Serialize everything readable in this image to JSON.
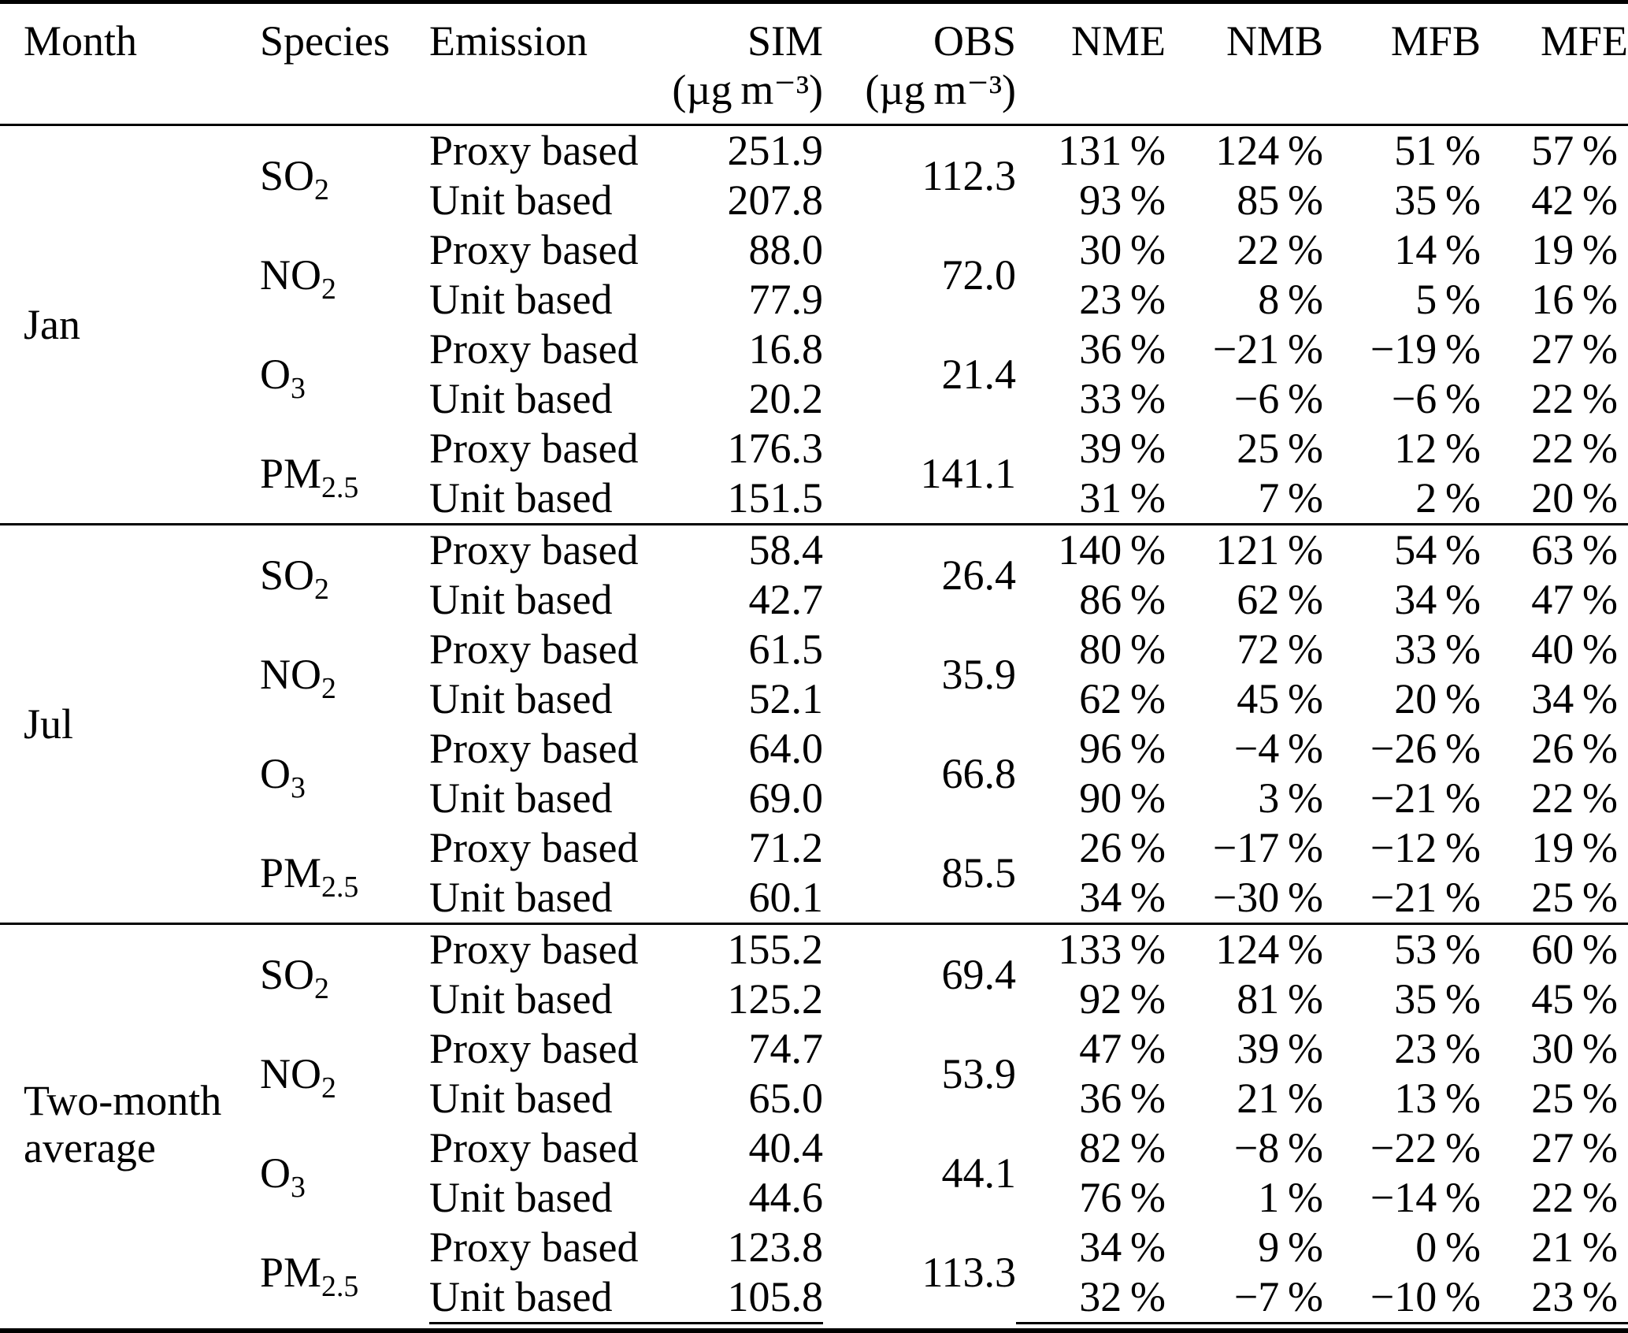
{
  "table": {
    "columns": [
      {
        "label": "Month"
      },
      {
        "label": "Species"
      },
      {
        "label": "Emission"
      },
      {
        "label": "SIM",
        "unit": "(µg m⁻³)"
      },
      {
        "label": "OBS",
        "unit": "(µg m⁻³)"
      },
      {
        "label": "NME"
      },
      {
        "label": "NMB"
      },
      {
        "label": "MFB"
      },
      {
        "label": "MFE"
      }
    ],
    "groups": [
      {
        "month": "Jan",
        "species": [
          {
            "base": "SO",
            "sub": "2",
            "obs": "112.3",
            "rows": [
              {
                "emission": "Proxy based",
                "sim": "251.9",
                "nme": "131 %",
                "nmb": "124 %",
                "mfb": "51 %",
                "mfe": "57 %"
              },
              {
                "emission": "Unit based",
                "sim": "207.8",
                "nme": "93 %",
                "nmb": "85 %",
                "mfb": "35 %",
                "mfe": "42 %"
              }
            ]
          },
          {
            "base": "NO",
            "sub": "2",
            "obs": "72.0",
            "rows": [
              {
                "emission": "Proxy based",
                "sim": "88.0",
                "nme": "30 %",
                "nmb": "22 %",
                "mfb": "14 %",
                "mfe": "19 %"
              },
              {
                "emission": "Unit based",
                "sim": "77.9",
                "nme": "23 %",
                "nmb": "8 %",
                "mfb": "5 %",
                "mfe": "16 %"
              }
            ]
          },
          {
            "base": "O",
            "sub": "3",
            "obs": "21.4",
            "rows": [
              {
                "emission": "Proxy based",
                "sim": "16.8",
                "nme": "36 %",
                "nmb": "−21 %",
                "mfb": "−19 %",
                "mfe": "27 %"
              },
              {
                "emission": "Unit based",
                "sim": "20.2",
                "nme": "33 %",
                "nmb": "−6 %",
                "mfb": "−6 %",
                "mfe": "22 %"
              }
            ]
          },
          {
            "base": "PM",
            "sub": "2.5",
            "obs": "141.1",
            "rows": [
              {
                "emission": "Proxy based",
                "sim": "176.3",
                "nme": "39 %",
                "nmb": "25 %",
                "mfb": "12 %",
                "mfe": "22 %"
              },
              {
                "emission": "Unit based",
                "sim": "151.5",
                "nme": "31 %",
                "nmb": "7 %",
                "mfb": "2 %",
                "mfe": "20 %"
              }
            ]
          }
        ]
      },
      {
        "month": "Jul",
        "species": [
          {
            "base": "SO",
            "sub": "2",
            "obs": "26.4",
            "rows": [
              {
                "emission": "Proxy based",
                "sim": "58.4",
                "nme": "140 %",
                "nmb": "121 %",
                "mfb": "54 %",
                "mfe": "63 %"
              },
              {
                "emission": "Unit based",
                "sim": "42.7",
                "nme": "86 %",
                "nmb": "62 %",
                "mfb": "34 %",
                "mfe": "47 %"
              }
            ]
          },
          {
            "base": "NO",
            "sub": "2",
            "obs": "35.9",
            "rows": [
              {
                "emission": "Proxy based",
                "sim": "61.5",
                "nme": "80 %",
                "nmb": "72 %",
                "mfb": "33 %",
                "mfe": "40 %"
              },
              {
                "emission": "Unit based",
                "sim": "52.1",
                "nme": "62 %",
                "nmb": "45 %",
                "mfb": "20 %",
                "mfe": "34 %"
              }
            ]
          },
          {
            "base": "O",
            "sub": "3",
            "obs": "66.8",
            "rows": [
              {
                "emission": "Proxy based",
                "sim": "64.0",
                "nme": "96 %",
                "nmb": "−4 %",
                "mfb": "−26 %",
                "mfe": "26 %"
              },
              {
                "emission": "Unit based",
                "sim": "69.0",
                "nme": "90 %",
                "nmb": "3 %",
                "mfb": "−21 %",
                "mfe": "22 %"
              }
            ]
          },
          {
            "base": "PM",
            "sub": "2.5",
            "obs": "85.5",
            "rows": [
              {
                "emission": "Proxy based",
                "sim": "71.2",
                "nme": "26 %",
                "nmb": "−17 %",
                "mfb": "−12 %",
                "mfe": "19 %"
              },
              {
                "emission": "Unit based",
                "sim": "60.1",
                "nme": "34 %",
                "nmb": "−30 %",
                "mfb": "−21 %",
                "mfe": "25 %"
              }
            ]
          }
        ]
      },
      {
        "month": "Two-month average",
        "species": [
          {
            "base": "SO",
            "sub": "2",
            "obs": "69.4",
            "rows": [
              {
                "emission": "Proxy based",
                "sim": "155.2",
                "nme": "133 %",
                "nmb": "124 %",
                "mfb": "53 %",
                "mfe": "60 %"
              },
              {
                "emission": "Unit based",
                "sim": "125.2",
                "nme": "92 %",
                "nmb": "81 %",
                "mfb": "35 %",
                "mfe": "45 %"
              }
            ]
          },
          {
            "base": "NO",
            "sub": "2",
            "obs": "53.9",
            "rows": [
              {
                "emission": "Proxy based",
                "sim": "74.7",
                "nme": "47 %",
                "nmb": "39 %",
                "mfb": "23 %",
                "mfe": "30 %"
              },
              {
                "emission": "Unit based",
                "sim": "65.0",
                "nme": "36 %",
                "nmb": "21 %",
                "mfb": "13 %",
                "mfe": "25 %"
              }
            ]
          },
          {
            "base": "O",
            "sub": "3",
            "obs": "44.1",
            "rows": [
              {
                "emission": "Proxy based",
                "sim": "40.4",
                "nme": "82 %",
                "nmb": "−8 %",
                "mfb": "−22 %",
                "mfe": "27 %"
              },
              {
                "emission": "Unit based",
                "sim": "44.6",
                "nme": "76 %",
                "nmb": "1 %",
                "mfb": "−14 %",
                "mfe": "22 %"
              }
            ]
          },
          {
            "base": "PM",
            "sub": "2.5",
            "obs": "113.3",
            "rows": [
              {
                "emission": "Proxy based",
                "sim": "123.8",
                "nme": "34 %",
                "nmb": "9 %",
                "mfb": "0 %",
                "mfe": "21 %"
              },
              {
                "emission": "Unit based",
                "sim": "105.8",
                "nme": "32 %",
                "nmb": "−7 %",
                "mfb": "−10 %",
                "mfe": "23 %"
              }
            ]
          }
        ]
      }
    ]
  }
}
